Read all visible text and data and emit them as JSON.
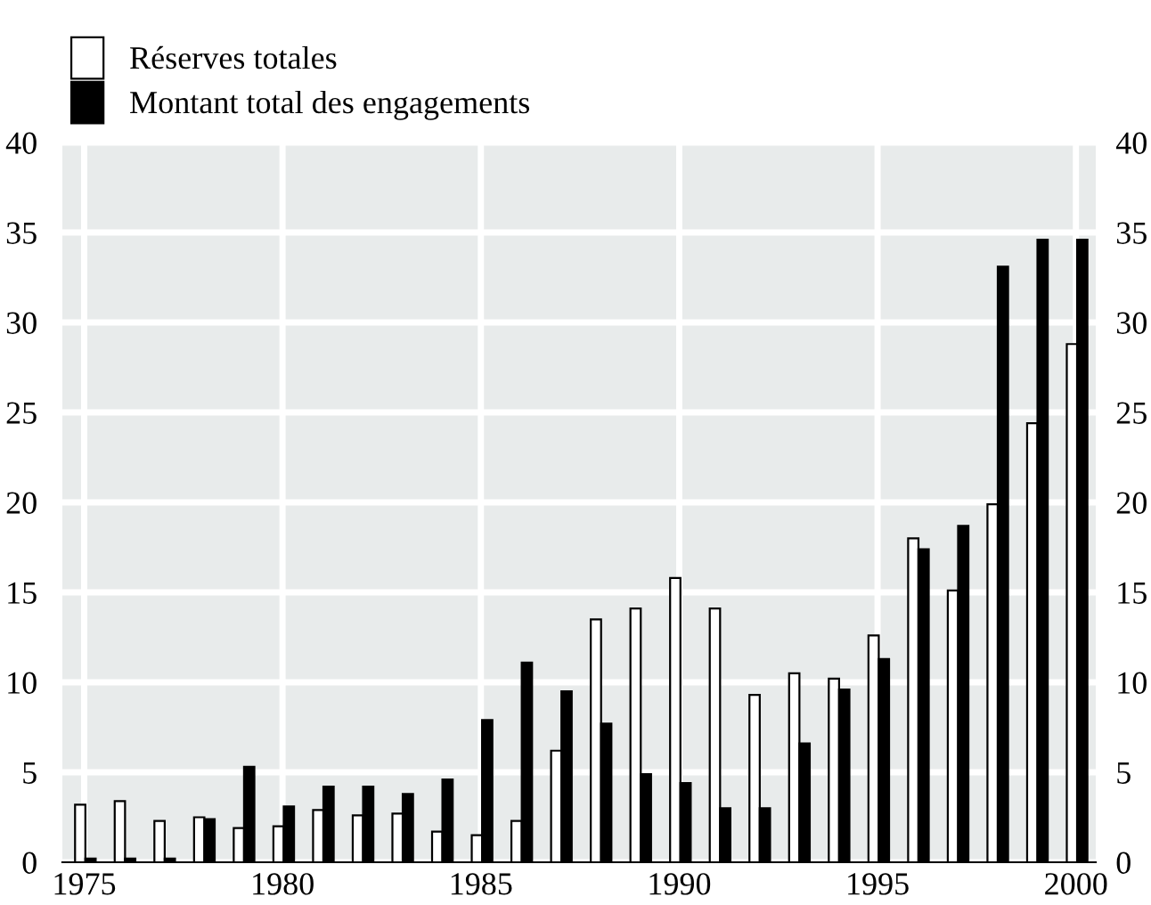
{
  "chart_data": {
    "type": "bar",
    "x": [
      1975,
      1976,
      1977,
      1978,
      1979,
      1980,
      1981,
      1982,
      1983,
      1984,
      1985,
      1986,
      1987,
      1988,
      1989,
      1990,
      1991,
      1992,
      1993,
      1994,
      1995,
      1996,
      1997,
      1998,
      1999,
      2000
    ],
    "series": [
      {
        "name": "Réserves totales",
        "color": "#ffffff",
        "values": [
          3.2,
          3.4,
          2.3,
          2.5,
          1.9,
          2.0,
          2.9,
          2.6,
          2.7,
          1.7,
          1.5,
          2.3,
          6.2,
          13.5,
          14.1,
          15.8,
          14.1,
          9.3,
          10.5,
          10.2,
          12.6,
          18.0,
          15.1,
          19.9,
          24.4,
          28.8
        ]
      },
      {
        "name": "Montant total des engagements",
        "color": "#000000",
        "values": [
          0.2,
          0.2,
          0.2,
          2.4,
          5.3,
          3.1,
          4.2,
          4.2,
          3.8,
          4.6,
          7.9,
          11.1,
          9.5,
          7.7,
          4.9,
          4.4,
          3.0,
          3.0,
          6.6,
          9.6,
          11.3,
          17.4,
          18.7,
          33.1,
          34.6,
          34.6
        ]
      }
    ],
    "xlim": [
      1974.45,
      2000.5
    ],
    "xticks": [
      1975,
      1980,
      1985,
      1990,
      1995,
      2000
    ],
    "ylim": [
      0,
      40
    ],
    "yticks": [
      0,
      5,
      10,
      15,
      20,
      25,
      30,
      35,
      40
    ],
    "y2lim": [
      0,
      40
    ],
    "y2ticks": [
      0,
      5,
      10,
      15,
      20,
      25,
      30,
      35,
      40
    ],
    "grid": true,
    "legend": "top left"
  }
}
